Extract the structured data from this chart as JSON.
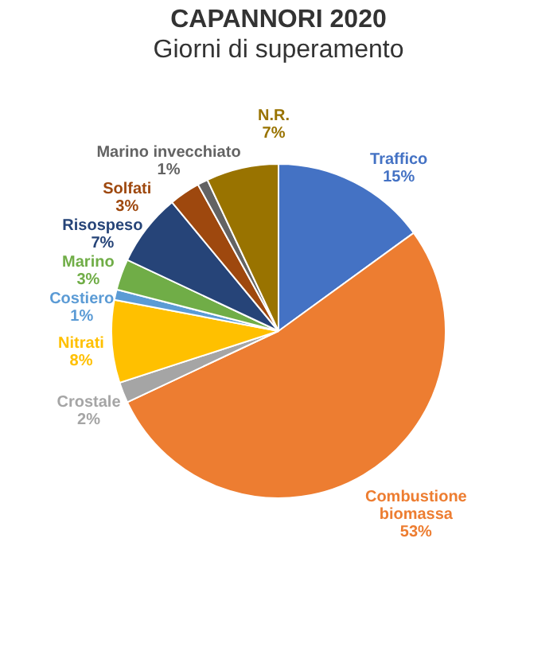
{
  "chart_data": {
    "type": "pie",
    "title": "CAPANNORI 2020",
    "subtitle": "Giorni di superamento",
    "categories": [
      "Traffico",
      "Combustione biomassa",
      "Crostale",
      "Nitrati",
      "Costiero",
      "Marino",
      "Risospeso",
      "Solfati",
      "Marino invecchiato",
      "N.R."
    ],
    "values": [
      15,
      53,
      2,
      8,
      1,
      3,
      7,
      3,
      1,
      7
    ],
    "value_labels": [
      "15%",
      "53%",
      "2%",
      "8%",
      "1%",
      "3%",
      "7%",
      "3%",
      "1%",
      "7%"
    ],
    "colors": [
      "#4472c4",
      "#ed7d31",
      "#a5a5a5",
      "#ffc000",
      "#5b9bd5",
      "#70ad47",
      "#264478",
      "#9e480e",
      "#636363",
      "#997300"
    ]
  }
}
